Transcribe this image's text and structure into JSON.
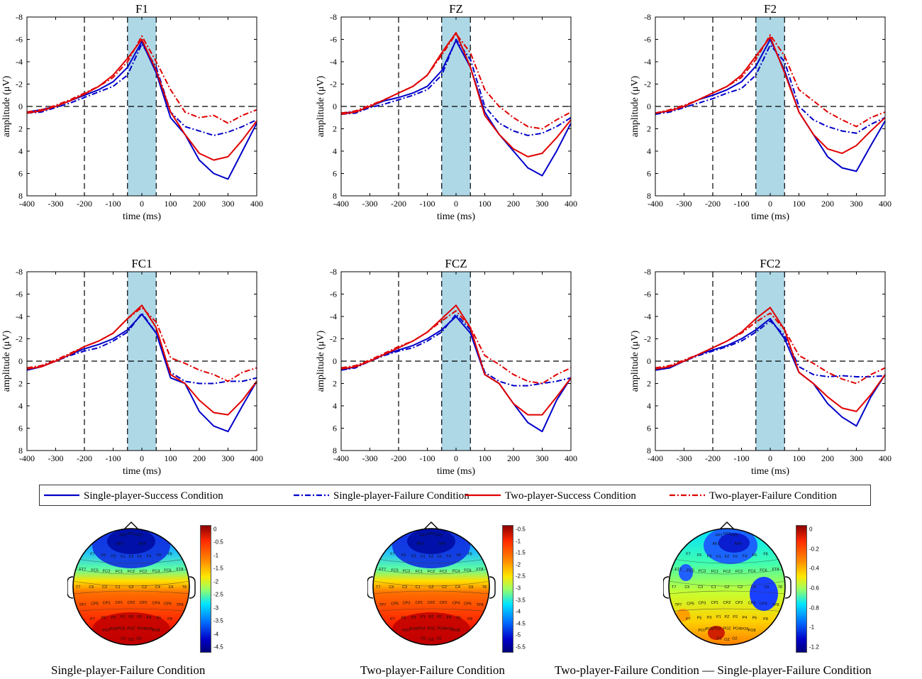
{
  "chart_data": [
    {
      "type": "line",
      "title": "F1",
      "xlabel": "time (ms)",
      "ylabel": "amplitude (μV)",
      "xlim": [
        -400,
        400
      ],
      "ylim": [
        -8,
        8
      ],
      "y_inverted": true,
      "x": [
        -400,
        -350,
        -300,
        -250,
        -200,
        -150,
        -100,
        -50,
        0,
        50,
        100,
        150,
        200,
        250,
        300,
        350,
        400
      ],
      "series": [
        {
          "name": "Single-player-Success Condition",
          "values": [
            0.5,
            0.3,
            0.0,
            -0.5,
            -1.0,
            -1.5,
            -2.2,
            -3.5,
            -5.8,
            -3.0,
            1.0,
            2.5,
            4.8,
            6.0,
            6.5,
            4.0,
            1.5
          ]
        },
        {
          "name": "Single-player-Failure Condition",
          "values": [
            0.6,
            0.5,
            0.1,
            -0.3,
            -0.8,
            -1.3,
            -1.8,
            -2.8,
            -5.6,
            -3.5,
            0.5,
            1.8,
            2.2,
            2.6,
            2.3,
            1.8,
            1.2
          ]
        },
        {
          "name": "Two-player-Success Condition",
          "values": [
            0.6,
            0.4,
            0.0,
            -0.5,
            -1.1,
            -1.8,
            -2.8,
            -4.3,
            -6.0,
            -3.2,
            0.5,
            2.5,
            4.2,
            4.8,
            4.5,
            3.0,
            1.3
          ]
        },
        {
          "name": "Two-player-Failure Condition",
          "values": [
            0.5,
            0.3,
            -0.1,
            -0.6,
            -1.2,
            -1.8,
            -2.6,
            -4.0,
            -6.3,
            -4.0,
            -1.5,
            0.5,
            1.0,
            0.8,
            1.5,
            0.8,
            0.3
          ]
        }
      ]
    },
    {
      "type": "line",
      "title": "FZ",
      "xlabel": "time (ms)",
      "ylabel": "amplitude (μV)",
      "xlim": [
        -400,
        400
      ],
      "ylim": [
        -8,
        8
      ],
      "y_inverted": true,
      "x": [
        -400,
        -350,
        -300,
        -250,
        -200,
        -150,
        -100,
        -50,
        0,
        50,
        100,
        150,
        200,
        250,
        300,
        350,
        400
      ],
      "series": [
        {
          "name": "Single-player-Success Condition",
          "values": [
            0.6,
            0.5,
            0.0,
            -0.5,
            -0.8,
            -1.2,
            -1.8,
            -3.2,
            -5.9,
            -3.5,
            0.5,
            2.5,
            4.0,
            5.5,
            6.2,
            4.0,
            1.5
          ]
        },
        {
          "name": "Single-player-Failure Condition",
          "values": [
            0.7,
            0.6,
            0.1,
            -0.2,
            -0.6,
            -1.0,
            -1.5,
            -2.8,
            -6.0,
            -4.2,
            0.0,
            1.5,
            2.2,
            2.6,
            2.4,
            1.8,
            1.0
          ]
        },
        {
          "name": "Two-player-Success Condition",
          "values": [
            0.7,
            0.5,
            0.0,
            -0.6,
            -1.2,
            -1.8,
            -2.8,
            -4.8,
            -6.6,
            -3.5,
            0.8,
            2.5,
            3.8,
            4.5,
            4.2,
            2.8,
            1.2
          ]
        },
        {
          "name": "Two-player-Failure Condition",
          "values": [
            0.6,
            0.4,
            -0.1,
            -0.6,
            -1.2,
            -1.8,
            -2.8,
            -4.6,
            -6.5,
            -4.8,
            -1.5,
            0.0,
            1.0,
            1.8,
            2.0,
            1.2,
            0.5
          ]
        }
      ]
    },
    {
      "type": "line",
      "title": "F2",
      "xlabel": "time (ms)",
      "ylabel": "amplitude (μV)",
      "xlim": [
        -400,
        400
      ],
      "ylim": [
        -8,
        8
      ],
      "y_inverted": true,
      "x": [
        -400,
        -350,
        -300,
        -250,
        -200,
        -150,
        -100,
        -50,
        0,
        50,
        100,
        150,
        200,
        250,
        300,
        350,
        400
      ],
      "series": [
        {
          "name": "Single-player-Success Condition",
          "values": [
            0.6,
            0.4,
            0.0,
            -0.6,
            -1.0,
            -1.5,
            -2.2,
            -3.6,
            -6.0,
            -3.2,
            0.5,
            2.5,
            4.5,
            5.5,
            5.8,
            3.5,
            1.3
          ]
        },
        {
          "name": "Single-player-Failure Condition",
          "values": [
            0.7,
            0.5,
            0.1,
            -0.3,
            -0.7,
            -1.2,
            -1.6,
            -2.8,
            -5.5,
            -4.0,
            0.0,
            1.2,
            1.8,
            2.2,
            2.4,
            1.6,
            1.0
          ]
        },
        {
          "name": "Two-player-Success Condition",
          "values": [
            0.6,
            0.4,
            0.0,
            -0.6,
            -1.2,
            -1.8,
            -2.8,
            -4.5,
            -6.2,
            -3.0,
            0.5,
            2.5,
            3.8,
            4.2,
            3.5,
            2.2,
            1.0
          ]
        },
        {
          "name": "Two-player-Failure Condition",
          "values": [
            0.6,
            0.3,
            -0.1,
            -0.6,
            -1.2,
            -1.8,
            -2.6,
            -4.2,
            -6.4,
            -4.5,
            -1.5,
            -0.5,
            0.5,
            1.2,
            1.8,
            1.0,
            0.5
          ]
        }
      ]
    },
    {
      "type": "line",
      "title": "FC1",
      "xlabel": "time (ms)",
      "ylabel": "amplitude (μV)",
      "xlim": [
        -400,
        400
      ],
      "ylim": [
        -8,
        8
      ],
      "y_inverted": true,
      "x": [
        -400,
        -350,
        -300,
        -250,
        -200,
        -150,
        -100,
        -50,
        0,
        50,
        100,
        150,
        200,
        250,
        300,
        350,
        400
      ],
      "series": [
        {
          "name": "Single-player-Success Condition",
          "values": [
            0.8,
            0.5,
            0.0,
            -0.6,
            -1.1,
            -1.5,
            -2.0,
            -2.8,
            -4.2,
            -2.5,
            1.5,
            2.0,
            4.5,
            5.8,
            6.3,
            4.0,
            1.8
          ]
        },
        {
          "name": "Single-player-Failure Condition",
          "values": [
            0.8,
            0.4,
            0.0,
            -0.5,
            -0.9,
            -1.2,
            -1.8,
            -2.6,
            -4.3,
            -2.5,
            1.0,
            1.8,
            2.0,
            2.0,
            1.8,
            1.8,
            1.5
          ]
        },
        {
          "name": "Two-player-Success Condition",
          "values": [
            0.7,
            0.5,
            0.0,
            -0.6,
            -1.3,
            -1.8,
            -2.5,
            -3.8,
            -5.0,
            -3.0,
            1.2,
            2.0,
            3.5,
            4.6,
            4.8,
            3.5,
            1.8
          ]
        },
        {
          "name": "Two-player-Failure Condition",
          "values": [
            0.6,
            0.4,
            -0.1,
            -0.7,
            -1.3,
            -1.8,
            -2.5,
            -3.8,
            -4.8,
            -3.5,
            -0.3,
            0.2,
            0.8,
            1.2,
            1.8,
            1.0,
            0.6
          ]
        }
      ]
    },
    {
      "type": "line",
      "title": "FCZ",
      "xlabel": "time (ms)",
      "ylabel": "amplitude (μV)",
      "xlim": [
        -400,
        400
      ],
      "ylim": [
        -8,
        8
      ],
      "y_inverted": true,
      "x": [
        -400,
        -350,
        -300,
        -250,
        -200,
        -150,
        -100,
        -50,
        0,
        50,
        100,
        150,
        200,
        250,
        300,
        350,
        400
      ],
      "series": [
        {
          "name": "Single-player-Success Condition",
          "values": [
            0.8,
            0.5,
            0.0,
            -0.6,
            -1.0,
            -1.4,
            -2.0,
            -2.8,
            -4.0,
            -2.5,
            1.2,
            2.0,
            3.8,
            5.5,
            6.3,
            3.5,
            1.5
          ]
        },
        {
          "name": "Single-player-Failure Condition",
          "values": [
            0.8,
            0.6,
            0.0,
            -0.5,
            -0.9,
            -1.2,
            -1.8,
            -2.6,
            -4.2,
            -2.8,
            1.0,
            1.8,
            2.2,
            2.2,
            2.0,
            1.8,
            1.5
          ]
        },
        {
          "name": "Two-player-Success Condition",
          "values": [
            0.7,
            0.5,
            0.0,
            -0.6,
            -1.2,
            -1.8,
            -2.6,
            -3.8,
            -5.0,
            -3.0,
            1.2,
            2.0,
            3.8,
            4.8,
            4.8,
            3.2,
            1.5
          ]
        },
        {
          "name": "Two-player-Failure Condition",
          "values": [
            0.6,
            0.4,
            -0.1,
            -0.7,
            -1.3,
            -1.8,
            -2.6,
            -3.6,
            -4.5,
            -3.0,
            -0.5,
            0.3,
            1.2,
            1.8,
            2.0,
            1.2,
            0.6
          ]
        }
      ]
    },
    {
      "type": "line",
      "title": "FC2",
      "xlabel": "time (ms)",
      "ylabel": "amplitude (μV)",
      "xlim": [
        -400,
        400
      ],
      "ylim": [
        -8,
        8
      ],
      "y_inverted": true,
      "x": [
        -400,
        -350,
        -300,
        -250,
        -200,
        -150,
        -100,
        -50,
        0,
        50,
        100,
        150,
        200,
        250,
        300,
        350,
        400
      ],
      "series": [
        {
          "name": "Single-player-Success Condition",
          "values": [
            0.8,
            0.6,
            0.0,
            -0.6,
            -1.0,
            -1.4,
            -2.0,
            -2.8,
            -3.8,
            -2.0,
            1.0,
            2.0,
            3.8,
            5.0,
            5.8,
            3.2,
            1.2
          ]
        },
        {
          "name": "Single-player-Failure Condition",
          "values": [
            0.8,
            0.6,
            0.0,
            -0.5,
            -0.9,
            -1.3,
            -1.8,
            -2.6,
            -3.6,
            -2.3,
            0.5,
            1.2,
            1.4,
            1.3,
            1.4,
            1.4,
            1.3
          ]
        },
        {
          "name": "Two-player-Success Condition",
          "values": [
            0.7,
            0.5,
            0.0,
            -0.6,
            -1.2,
            -1.8,
            -2.6,
            -3.8,
            -4.8,
            -2.8,
            1.0,
            2.0,
            3.2,
            4.2,
            4.5,
            3.0,
            1.2
          ]
        },
        {
          "name": "Two-player-Failure Condition",
          "values": [
            0.6,
            0.4,
            -0.1,
            -0.6,
            -1.2,
            -1.8,
            -2.5,
            -3.5,
            -4.3,
            -2.8,
            -0.5,
            0.2,
            1.0,
            1.6,
            2.0,
            1.2,
            0.6
          ]
        }
      ]
    }
  ],
  "legend": [
    {
      "label": "Single-player-Success Condition",
      "color": "#0000c8",
      "dash": "solid"
    },
    {
      "label": "Single-player-Failure Condition",
      "color": "#0000c8",
      "dash": "dashdot"
    },
    {
      "label": "Two-player-Success Condition",
      "color": "#e00000",
      "dash": "solid"
    },
    {
      "label": "Two-player-Failure Condition",
      "color": "#e00000",
      "dash": "dashdot"
    }
  ],
  "axes": {
    "x_ticks": [
      "-400",
      "-300",
      "-200",
      "-100",
      "0",
      "100",
      "200",
      "300",
      "400"
    ],
    "y_ticks": [
      "-8",
      "-6",
      "-4",
      "-2",
      "0",
      "2",
      "4",
      "6",
      "8"
    ],
    "highlight_window_ms": [
      -50,
      50
    ],
    "marker_ms": -200
  },
  "topomaps": [
    {
      "title": "Single-player-Failure Condition",
      "ticks": [
        "0",
        "-0.5",
        "-1",
        "-1.5",
        "-2",
        "-2.5",
        "-3",
        "-3.5",
        "-4",
        "-4.5"
      ]
    },
    {
      "title": "Two-player-Failure Condition",
      "ticks": [
        "-0.5",
        "-1",
        "-1.5",
        "-2",
        "-2.5",
        "-3",
        "-3.5",
        "-4",
        "-4.5",
        "-5",
        "-5.5"
      ]
    },
    {
      "title": "Two-player-Failure Condition — Single-player-Failure Condition",
      "ticks": [
        "0",
        "-0.2",
        "-0.4",
        "-0.6",
        "-0.8",
        "-1",
        "-1.2"
      ]
    }
  ],
  "electrode_labels": [
    "FP1",
    "FPZ",
    "FP2",
    "AF3",
    "AF4",
    "F7",
    "F5",
    "F3",
    "F1",
    "FZ",
    "F2",
    "F4",
    "F6",
    "F8",
    "FT7",
    "FC5",
    "FC3",
    "FC1",
    "FCZ",
    "FC2",
    "FC4",
    "FC6",
    "FT8",
    "T7",
    "C5",
    "C3",
    "C1",
    "CZ",
    "C2",
    "C4",
    "C6",
    "T8",
    "TP7",
    "CP5",
    "CP3",
    "CP1",
    "CPZ",
    "CP2",
    "CP4",
    "CP6",
    "TP8",
    "P7",
    "P5",
    "P3",
    "P1",
    "PZ",
    "P2",
    "P4",
    "P6",
    "P8",
    "PO7",
    "PO5",
    "PO3",
    "POZ",
    "PO4",
    "PO6",
    "PO8",
    "O1",
    "OZ",
    "O2"
  ]
}
